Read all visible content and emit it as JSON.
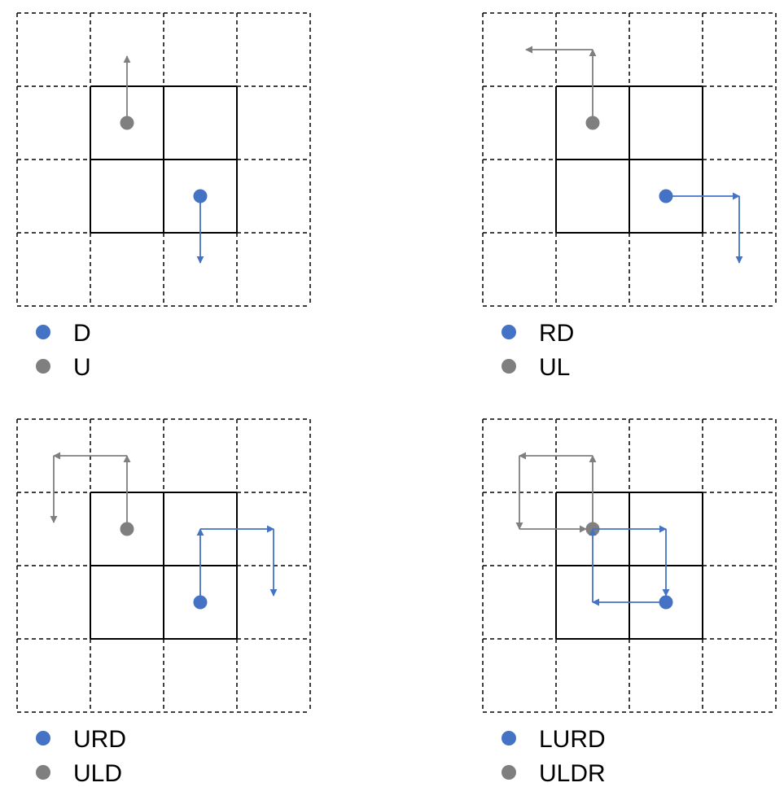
{
  "colors": {
    "blue": "#4472C4",
    "gray": "#7F7F7F"
  },
  "panels": [
    {
      "id": "panel-1",
      "blue": {
        "label": "D",
        "start": [
          2,
          2
        ],
        "path": "D"
      },
      "gray": {
        "label": "U",
        "start": [
          1,
          1
        ],
        "path": "U"
      }
    },
    {
      "id": "panel-2",
      "blue": {
        "label": "RD",
        "start": [
          2,
          2
        ],
        "path": "RD"
      },
      "gray": {
        "label": "UL",
        "start": [
          1,
          1
        ],
        "path": "UL"
      }
    },
    {
      "id": "panel-3",
      "blue": {
        "label": "URD",
        "start": [
          2,
          2
        ],
        "path": "URD"
      },
      "gray": {
        "label": "ULD",
        "start": [
          1,
          1
        ],
        "path": "ULD"
      }
    },
    {
      "id": "panel-4",
      "blue": {
        "label": "LURD",
        "start": [
          2,
          2
        ],
        "path": "LURD"
      },
      "gray": {
        "label": "ULDR",
        "start": [
          1,
          1
        ],
        "path": "ULDR"
      }
    }
  ]
}
